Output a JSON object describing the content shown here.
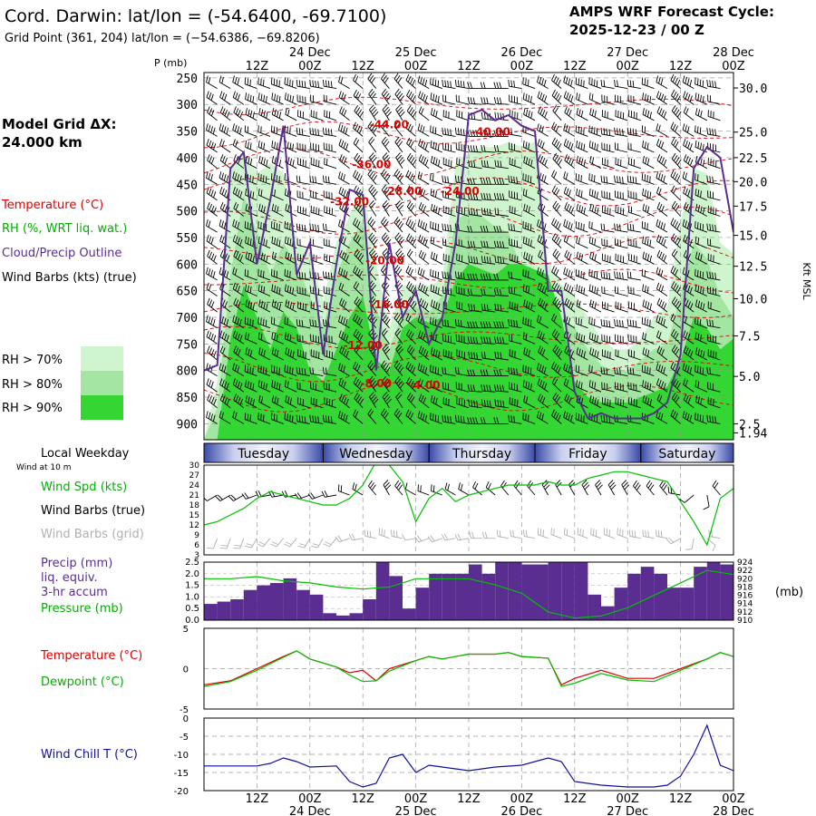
{
  "header": {
    "station_title": "Cord. Darwin:  lat/lon = (-54.6400, -69.7100)",
    "grid_point": "Grid Point (361, 204) lat/lon = (−54.6386, −69.8206)",
    "cycle_title": "AMPS WRF Forecast Cycle:",
    "cycle_value": "2025-12-23 / 00  Z",
    "model_grid_label": "Model Grid ΔX:",
    "model_grid_value": "24.000 km"
  },
  "legend": {
    "temperature": "Temperature (°C)",
    "rh": "RH (%, WRT liq. wat.)",
    "cloud_outline": "Cloud/Precip Outline",
    "wind_barbs": "Wind Barbs (kts) (true)",
    "rh70": "RH > 70%",
    "rh80": "RH > 80%",
    "rh90": "RH > 90%",
    "local_weekday": "Local Weekday",
    "wind_at_10m": "Wind at 10 m",
    "wind_spd": "Wind Spd (kts)",
    "wind_barbs_true": "Wind Barbs (true)",
    "wind_barbs_grid": "Wind Barbs (grid)",
    "precip_line1": "Precip (mm)",
    "precip_line2": "liq. equiv.",
    "precip_line3": "3-hr accum",
    "pressure": "Pressure (mb)",
    "pressure_unit": "(mb)",
    "temp2": "Temperature (°C)",
    "dewpoint": "Dewpoint (°C)",
    "wind_chill": "Wind Chill T (°C)"
  },
  "colors": {
    "temperature": "#e00000",
    "dewpoint": "#00c000",
    "cloud_outline": "#5a2d91",
    "precip_bar": "#5a2d91",
    "rh70": "#cff5cf",
    "rh80": "#a2e6a2",
    "rh90": "#33d633",
    "wind_chill": "#1010a0",
    "wind_speed": "#00c000",
    "grid_barb": "#b0b0b0"
  },
  "chart_data": [
    {
      "type": "heatmap",
      "name_hint": "cross-section",
      "x_time_labels": [
        "12Z",
        "00Z",
        "12Z",
        "00Z",
        "12Z",
        "00Z",
        "12Z",
        "00Z",
        "12Z",
        "00Z"
      ],
      "x_hours": [
        12,
        24,
        36,
        48,
        60,
        72,
        84,
        96,
        108,
        120
      ],
      "x_date_labels": [
        "24 Dec",
        "25 Dec",
        "26 Dec",
        "27 Dec",
        "28 Dec"
      ],
      "x_date_hours": [
        24,
        48,
        72,
        96,
        120
      ],
      "ylabel": "P (mb)",
      "y_ticks": [
        250,
        300,
        350,
        400,
        450,
        500,
        550,
        600,
        650,
        700,
        750,
        800,
        850,
        900
      ],
      "ylim": [
        240,
        930
      ],
      "right_axis_label": "Kft MSL",
      "right_axis_ticks": [
        {
          "label": "30.0",
          "p": 269
        },
        {
          "label": "25.0",
          "p": 352
        },
        {
          "label": "22.5",
          "p": 400
        },
        {
          "label": "20.0",
          "p": 445
        },
        {
          "label": "17.5",
          "p": 491
        },
        {
          "label": "15.0",
          "p": 546
        },
        {
          "label": "12.5",
          "p": 604
        },
        {
          "label": "10.0",
          "p": 665
        },
        {
          "label": "7.5",
          "p": 735
        },
        {
          "label": "5.0",
          "p": 811
        },
        {
          "label": "2.5",
          "p": 900
        },
        {
          "label": "1.94",
          "p": 917
        }
      ],
      "temperature_labels": [
        {
          "text": "-44.00",
          "hour": 42,
          "p": 345
        },
        {
          "text": "-40.00",
          "hour": 65,
          "p": 358
        },
        {
          "text": "-36.00",
          "hour": 38,
          "p": 420
        },
        {
          "text": "-28.00",
          "hour": 45,
          "p": 470
        },
        {
          "text": "-24.00",
          "hour": 58,
          "p": 470
        },
        {
          "text": "-32.00",
          "hour": 33,
          "p": 490
        },
        {
          "text": "-20.00",
          "hour": 41,
          "p": 600
        },
        {
          "text": "-16.00",
          "hour": 42,
          "p": 683
        },
        {
          "text": "-12.00",
          "hour": 36,
          "p": 760
        },
        {
          "text": "-8.00",
          "hour": 39,
          "p": 831
        },
        {
          "text": "-4.00",
          "hour": 50,
          "p": 835
        }
      ],
      "rh_tops": {
        "hours": [
          0,
          3,
          6,
          9,
          12,
          15,
          18,
          21,
          24,
          27,
          30,
          33,
          36,
          39,
          42,
          45,
          48,
          51,
          54,
          57,
          60,
          63,
          66,
          69,
          72,
          75,
          78,
          81,
          84,
          87,
          90,
          93,
          96,
          99,
          102,
          105,
          108,
          111,
          114,
          117,
          120
        ],
        "rh70": [
          930,
          820,
          420,
          390,
          430,
          410,
          430,
          560,
          580,
          670,
          560,
          510,
          450,
          600,
          720,
          640,
          640,
          640,
          630,
          410,
          390,
          380,
          380,
          370,
          380,
          370,
          600,
          640,
          660,
          700,
          740,
          760,
          760,
          740,
          700,
          680,
          520,
          420,
          430,
          560,
          580
        ],
        "rh80": [
          930,
          870,
          620,
          470,
          540,
          620,
          560,
          600,
          660,
          720,
          620,
          560,
          520,
          680,
          760,
          690,
          680,
          690,
          660,
          520,
          500,
          510,
          530,
          540,
          610,
          640,
          680,
          700,
          720,
          760,
          790,
          800,
          800,
          780,
          760,
          750,
          660,
          560,
          590,
          660,
          700
        ],
        "rh90": [
          930,
          930,
          740,
          640,
          700,
          760,
          690,
          720,
          800,
          820,
          760,
          700,
          660,
          780,
          800,
          720,
          700,
          710,
          700,
          630,
          600,
          610,
          620,
          600,
          600,
          610,
          620,
          700,
          820,
          850,
          860,
          860,
          860,
          850,
          840,
          830,
          780,
          700,
          720,
          760,
          740
        ]
      },
      "cloud_outline": {
        "hours": [
          0,
          3,
          6,
          9,
          12,
          15,
          18,
          21,
          24,
          27,
          30,
          33,
          36,
          39,
          42,
          45,
          48,
          51,
          54,
          57,
          60,
          63,
          66,
          69,
          72,
          75,
          78,
          81,
          84,
          87,
          90,
          93,
          96,
          99,
          102,
          105,
          108,
          111,
          114,
          117,
          120
        ],
        "p": [
          800,
          790,
          420,
          390,
          600,
          480,
          340,
          620,
          560,
          770,
          600,
          460,
          470,
          800,
          560,
          700,
          650,
          750,
          700,
          560,
          320,
          310,
          330,
          320,
          340,
          350,
          650,
          650,
          840,
          890,
          880,
          890,
          890,
          890,
          880,
          860,
          770,
          420,
          380,
          400,
          540
        ]
      },
      "wind_barb_rows_p": [
        270,
        300,
        330,
        360,
        390,
        420,
        450,
        480,
        510,
        540,
        570,
        600,
        630,
        660,
        690,
        720,
        750,
        780,
        810,
        840,
        870,
        900
      ],
      "wind_barb_cols_hours": [
        3,
        6,
        9,
        12,
        15,
        18,
        21,
        24,
        27,
        30,
        33,
        36,
        39,
        42,
        45,
        48,
        51,
        54,
        57,
        60,
        63,
        66,
        69,
        72,
        75,
        78,
        81,
        84,
        87,
        90,
        93,
        96,
        99,
        102,
        105,
        108,
        111,
        114,
        117
      ],
      "wind_barb_direction_deg": [
        300,
        300,
        300,
        290,
        290,
        290,
        290,
        280,
        280,
        280,
        300,
        310,
        320,
        320,
        320,
        310,
        300,
        290,
        280,
        280,
        270,
        270,
        270,
        280,
        290,
        300,
        310,
        300,
        290,
        290,
        280,
        280,
        280,
        290,
        300,
        310,
        300,
        290,
        280
      ]
    },
    {
      "type": "table",
      "name_hint": "weekday-bar",
      "days": [
        {
          "label": "Tuesday",
          "start_hour": 0,
          "end_hour": 27
        },
        {
          "label": "Wednesday",
          "start_hour": 27,
          "end_hour": 51
        },
        {
          "label": "Thursday",
          "start_hour": 51,
          "end_hour": 75
        },
        {
          "label": "Friday",
          "start_hour": 75,
          "end_hour": 99
        },
        {
          "label": "Saturday",
          "start_hour": 99,
          "end_hour": 120
        }
      ]
    },
    {
      "type": "line",
      "name_hint": "surface-wind",
      "ylim": [
        3,
        30
      ],
      "y_ticks": [
        3,
        6,
        9,
        12,
        15,
        18,
        21,
        24,
        27,
        30
      ],
      "x": [
        0,
        3,
        6,
        9,
        12,
        15,
        18,
        21,
        24,
        27,
        30,
        33,
        36,
        39,
        42,
        45,
        48,
        51,
        54,
        57,
        60,
        63,
        66,
        69,
        72,
        75,
        78,
        81,
        84,
        87,
        90,
        93,
        96,
        99,
        102,
        105,
        108,
        111,
        114,
        117,
        120
      ],
      "series": [
        {
          "name": "Wind Spd (kts)",
          "values": [
            12,
            13,
            15,
            17,
            20,
            22,
            21,
            20,
            19,
            18,
            18,
            20,
            24,
            31,
            30,
            25,
            13,
            20,
            23,
            19,
            21,
            22,
            23,
            24,
            24,
            24,
            25,
            24,
            24,
            26,
            27,
            28,
            28,
            27,
            26,
            25,
            19,
            13,
            6,
            20,
            23
          ]
        }
      ],
      "barb_direction_deg": [
        250,
        240,
        240,
        240,
        250,
        260,
        260,
        260,
        250,
        250,
        260,
        290,
        300,
        320,
        330,
        320,
        300,
        290,
        290,
        300,
        300,
        310,
        310,
        320,
        320,
        320,
        330,
        330,
        330,
        330,
        330,
        330,
        330,
        320,
        320,
        320,
        280,
        230,
        170,
        320,
        330
      ]
    },
    {
      "type": "bar",
      "name_hint": "precip-pressure",
      "ylim": [
        0,
        2.5
      ],
      "y_ticks": [
        0.0,
        0.5,
        1.0,
        1.5,
        2.0,
        2.5
      ],
      "y_tick_labels": [
        "0.0",
        "0.5",
        "1.0",
        "1.5",
        "2.0",
        "2.5"
      ],
      "right_ylim": [
        910,
        924
      ],
      "right_ticks": [
        910,
        912,
        914,
        916,
        918,
        920,
        922,
        924
      ],
      "x_start_hours": [
        0,
        3,
        6,
        9,
        12,
        15,
        18,
        21,
        24,
        27,
        30,
        33,
        36,
        39,
        42,
        45,
        48,
        51,
        54,
        57,
        60,
        63,
        66,
        69,
        72,
        75,
        78,
        81,
        84,
        87,
        90,
        93,
        96,
        99,
        102,
        105,
        108,
        111,
        114,
        117
      ],
      "values": [
        0.7,
        0.8,
        0.9,
        1.3,
        1.5,
        1.6,
        1.8,
        1.3,
        1.1,
        0.3,
        0.2,
        0.3,
        0.9,
        2.5,
        1.9,
        0.5,
        1.4,
        2.0,
        2.0,
        2.0,
        2.4,
        2.0,
        2.5,
        2.5,
        2.4,
        2.4,
        2.5,
        2.5,
        2.5,
        1.1,
        0.6,
        1.4,
        2.0,
        2.3,
        2.0,
        1.4,
        1.4,
        2.3,
        2.5,
        2.4
      ],
      "pressure_x": [
        0,
        6,
        12,
        18,
        24,
        30,
        36,
        42,
        48,
        54,
        60,
        66,
        72,
        78,
        84,
        90,
        96,
        102,
        108,
        114,
        120
      ],
      "pressure": [
        920,
        920,
        920.5,
        919.5,
        919,
        918,
        917.5,
        918,
        920,
        920,
        920,
        918.5,
        916.5,
        912,
        910.5,
        911,
        913,
        916,
        919,
        922,
        921
      ]
    },
    {
      "type": "line",
      "name_hint": "temperature-dewpoint",
      "ylim": [
        -5,
        5
      ],
      "y_ticks": [
        -5,
        0,
        5
      ],
      "x": [
        0,
        6,
        12,
        18,
        21,
        24,
        30,
        33,
        36,
        39,
        42,
        48,
        51,
        54,
        60,
        66,
        69,
        72,
        78,
        81,
        84,
        90,
        96,
        102,
        108,
        114,
        117,
        120
      ],
      "series": [
        {
          "name": "Temperature (°C)",
          "values": [
            -2,
            -1.5,
            0,
            1.5,
            2.2,
            1.2,
            0.2,
            -0.5,
            -0.2,
            -1.5,
            0,
            1,
            1.5,
            1.2,
            1.8,
            1.8,
            2,
            1.5,
            1.3,
            -2,
            -1.2,
            -0.2,
            -1.2,
            -1.2,
            0,
            1.2,
            2,
            1.5
          ]
        },
        {
          "name": "Dewpoint (°C)",
          "values": [
            -2.2,
            -1.6,
            -0.2,
            1.4,
            2.2,
            1.2,
            0.2,
            -0.8,
            -1.6,
            -1.5,
            -0.3,
            1,
            1.5,
            1.2,
            1.8,
            1.8,
            2,
            1.5,
            1.3,
            -2.2,
            -1.8,
            -0.6,
            -1.4,
            -1.6,
            -0.2,
            1.2,
            2,
            1.5
          ]
        }
      ]
    },
    {
      "type": "line",
      "name_hint": "wind-chill",
      "ylim": [
        -20,
        0
      ],
      "y_ticks": [
        -20,
        -15,
        -10,
        -5,
        0
      ],
      "x": [
        0,
        6,
        12,
        15,
        18,
        21,
        24,
        30,
        33,
        36,
        39,
        42,
        45,
        48,
        51,
        54,
        57,
        60,
        66,
        72,
        78,
        81,
        84,
        90,
        96,
        102,
        105,
        108,
        111,
        114,
        117,
        120
      ],
      "series": [
        {
          "name": "Wind Chill T (°C)",
          "values": [
            -13.2,
            -13.2,
            -13.2,
            -12.5,
            -11,
            -12,
            -13.5,
            -13.2,
            -17.5,
            -19,
            -18,
            -11,
            -10,
            -15,
            -13,
            -13.5,
            -14,
            -14.5,
            -13.5,
            -13,
            -11,
            -12,
            -17.5,
            -18.5,
            -19,
            -19,
            -18.5,
            -16,
            -10,
            -2,
            -13,
            -14.5
          ]
        }
      ]
    }
  ]
}
